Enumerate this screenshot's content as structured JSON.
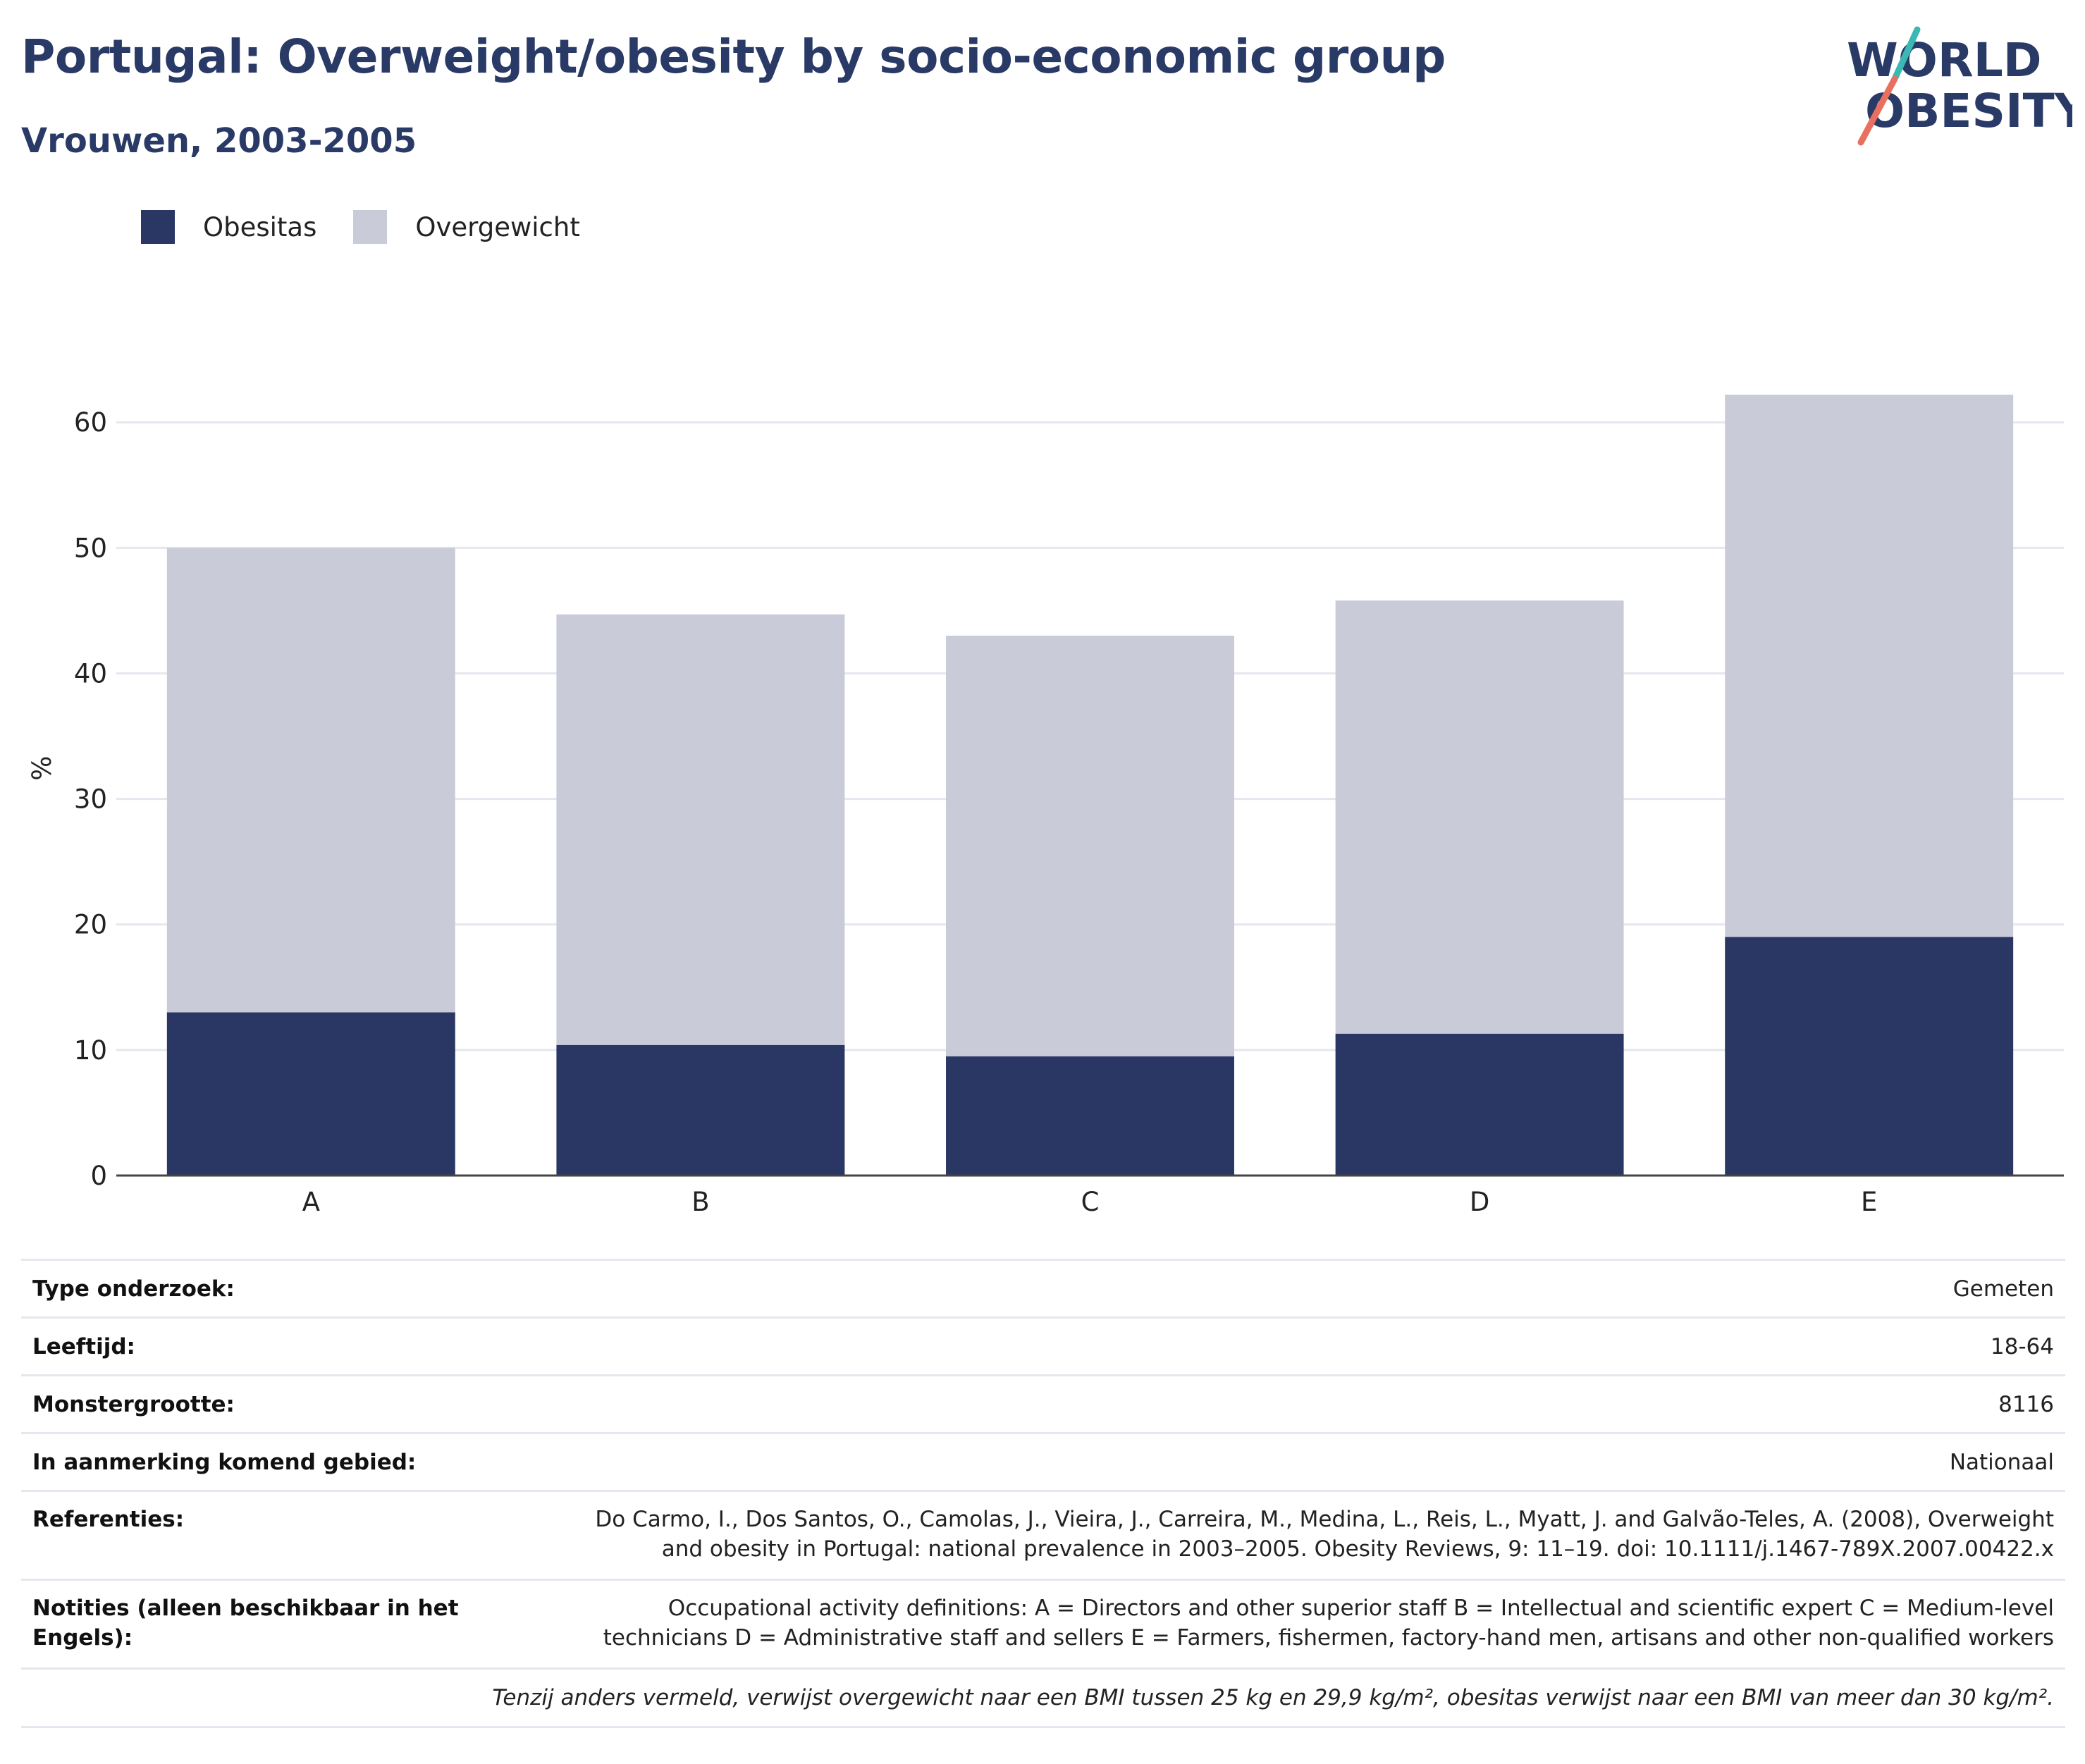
{
  "header": {
    "title": "Portugal: Overweight/obesity by socio-economic group",
    "subtitle": "Vrouwen, 2003-2005"
  },
  "logo": {
    "line1": "WORLD",
    "line2": "OBESITY"
  },
  "colors": {
    "obesity": "#2a3664",
    "overweight": "#c9cbd8",
    "title": "#2a3a66",
    "logo_teal": "#3bb8b4",
    "logo_coral": "#e8705f"
  },
  "chart_data": {
    "type": "bar",
    "stacked": true,
    "categories": [
      "A",
      "B",
      "C",
      "D",
      "E"
    ],
    "series": [
      {
        "name": "Obesitas",
        "values": [
          13.0,
          10.4,
          9.5,
          11.3,
          19.0
        ]
      },
      {
        "name": "Overgewicht",
        "values": [
          37.0,
          34.3,
          33.5,
          34.5,
          43.2
        ]
      }
    ],
    "totals": [
      50.0,
      44.7,
      43.0,
      45.8,
      62.2
    ],
    "ylabel": "%",
    "ylim": [
      0,
      62.2
    ],
    "yticks": [
      0,
      10,
      20,
      30,
      40,
      50,
      60
    ],
    "grid": true,
    "legend": "top-left"
  },
  "info": {
    "rows": [
      {
        "key": "Type onderzoek:",
        "value": "Gemeten"
      },
      {
        "key": "Leeftijd:",
        "value": "18-64"
      },
      {
        "key": "Monstergrootte:",
        "value": "8116"
      },
      {
        "key": "In aanmerking komend gebied:",
        "value": "Nationaal"
      },
      {
        "key": "Referenties:",
        "value_lines": [
          "Do Carmo, I., Dos Santos, O., Camolas, J., Vieira, J., Carreira, M., Medina, L., Reis, L., Myatt, J. and Galvão-Teles, A. (2008), Overweight",
          "and obesity in Portugal: national prevalence in 2003–2005. Obesity Reviews, 9: 11–19. doi: 10.1111/j.1467-789X.2007.00422.x"
        ]
      },
      {
        "key": "Notities (alleen beschikbaar in het Engels):",
        "value_lines": [
          "Occupational activity definitions: A = Directors and other superior staff B = Intellectual and scientific expert C = Medium-level",
          "technicians D = Administrative staff and sellers E = Farmers, fishermen, factory-hand men, artisans and other non-qualified workers"
        ]
      }
    ],
    "note": "Tenzij anders vermeld, verwijst overgewicht naar een BMI tussen 25 kg en 29,9 kg/m², obesitas verwijst naar een BMI van meer dan 30 kg/m²."
  }
}
